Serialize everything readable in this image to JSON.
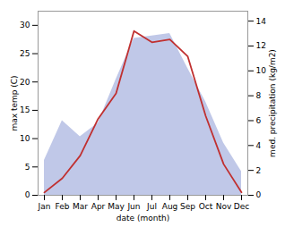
{
  "chart_data": {
    "type": "line",
    "xlabel": "date (month)",
    "ylabel": "max temp (C)",
    "y2label": "med. precipitation (kg/m2)",
    "categories": [
      "Jan",
      "Feb",
      "Mar",
      "Apr",
      "May",
      "Jun",
      "Jul",
      "Aug",
      "Sep",
      "Oct",
      "Nov",
      "Dec"
    ],
    "series": [
      {
        "type": "area",
        "axis": "y2",
        "color": "#c0c8e8",
        "values": [
          2.8,
          6.0,
          4.7,
          5.8,
          9.3,
          12.6,
          12.8,
          13.0,
          10.2,
          7.5,
          4.2,
          1.9
        ]
      },
      {
        "type": "line",
        "color": "#c03030",
        "values": [
          0.5,
          3.0,
          7.0,
          13.5,
          18.0,
          29.0,
          27.0,
          27.5,
          24.5,
          14.0,
          5.5,
          0.5
        ]
      }
    ],
    "ylim": [
      0,
      32.5
    ],
    "yticks": [
      0,
      5,
      10,
      15,
      20,
      25,
      30
    ],
    "y2lim": [
      0,
      14.8
    ],
    "y2ticks": [
      0,
      2,
      4,
      6,
      8,
      10,
      12,
      14
    ],
    "grid": false
  }
}
